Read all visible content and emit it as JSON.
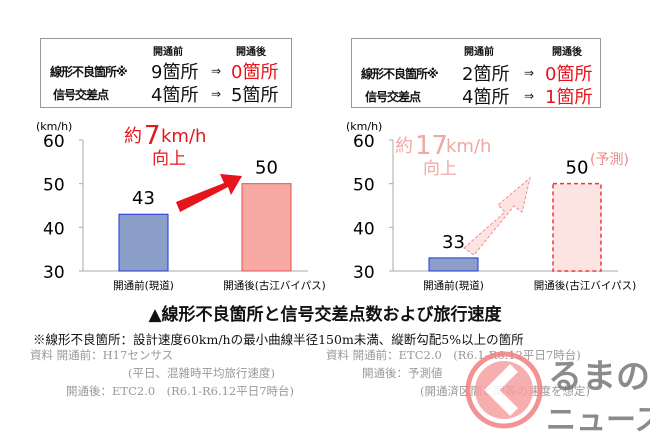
{
  "tables": [
    {
      "header_before": "開通前",
      "header_after": "開通後",
      "rows": [
        {
          "label": "線形不良箇所※",
          "before": "9箇所",
          "arrow": "⇒",
          "after": "0箇所",
          "after_red": true
        },
        {
          "label": "信号交差点",
          "before": "4箇所",
          "arrow": "⇒",
          "after": "5箇所",
          "after_red": false
        }
      ]
    },
    {
      "header_before": "開通前",
      "header_after": "開通後",
      "rows": [
        {
          "label": "線形不良箇所※",
          "before": "2箇所",
          "arrow": "⇒",
          "after": "0箇所",
          "after_red": true
        },
        {
          "label": "信号交差点",
          "before": "4箇所",
          "arrow": "⇒",
          "after": "1箇所",
          "after_red": true
        }
      ]
    }
  ],
  "chart_data": [
    {
      "type": "bar",
      "ylabel": "(km/h)",
      "ylim": [
        30,
        60
      ],
      "yticks": [
        "30",
        "40",
        "50",
        "60"
      ],
      "categories": [
        "開通前(現道)",
        "開通後(古江バイパス)"
      ],
      "values": [
        43,
        50
      ],
      "data_labels": [
        "43",
        "50"
      ],
      "colors": [
        "#8c9fc8",
        "#f7a9a4"
      ],
      "annotation": {
        "prefix": "約",
        "number": "7",
        "unit": "km/h",
        "line2": "向上",
        "color": "#e8141c"
      }
    },
    {
      "type": "bar",
      "ylabel": "(km/h)",
      "ylim": [
        30,
        60
      ],
      "yticks": [
        "30",
        "40",
        "50",
        "60"
      ],
      "categories": [
        "開通前(現道)",
        "開通後(古江バイパス)"
      ],
      "values": [
        33,
        50
      ],
      "data_labels": [
        "33",
        "50"
      ],
      "colors": [
        "#8c9fc8",
        "#fde3e2"
      ],
      "forecast_label": "(予測)",
      "annotation": {
        "prefix": "約",
        "number": "17",
        "unit": "km/h",
        "line2": "向上",
        "color": "#f0a8a4"
      }
    }
  ],
  "caption": "▲線形不良箇所と信号交差点数および旅行速度",
  "note": "※線形不良箇所：設計速度60km/hの最小曲線半径150m未満、縦断勾配5%以上の箇所",
  "sources": {
    "left": [
      "資料 開通前：H17センサス",
      "(平日、混雑時平均旅行速度)",
      "開通後：ETC2.0　(R6.1-R6.12平日7時台)"
    ],
    "right": [
      "資料 開通前：ETC2.0　(R6.1-R6.12平日7時台)",
      "開通後：予測値",
      "(開通済区間と同等の速度を想定)"
    ]
  },
  "watermark": {
    "text1": "るまの",
    "text2": "ニュース",
    "color": "#e8141c"
  }
}
